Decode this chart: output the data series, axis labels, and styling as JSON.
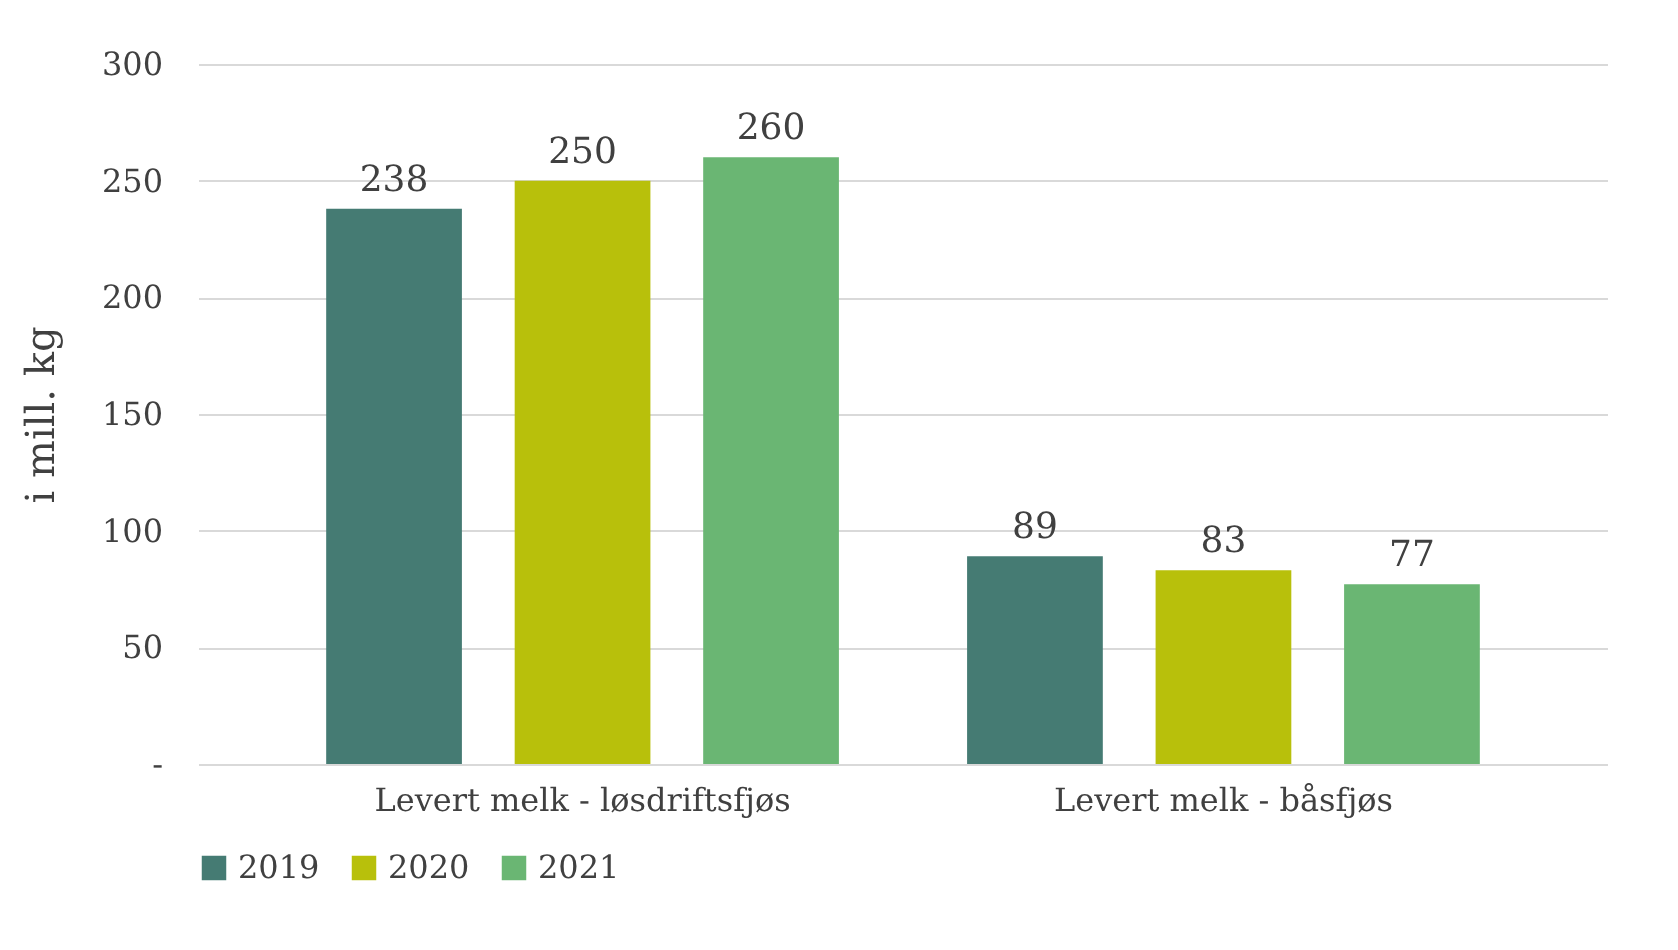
{
  "chart_data": {
    "type": "bar",
    "ylabel": "i mill. kg",
    "categories": [
      "Levert melk - løsdriftsfjøs",
      "Levert melk - båsfjøs"
    ],
    "series": [
      {
        "name": "2019",
        "color": "#457b73",
        "values": [
          238,
          89
        ]
      },
      {
        "name": "2020",
        "color": "#b8c00b",
        "values": [
          250,
          83
        ]
      },
      {
        "name": "2021",
        "color": "#6ab673",
        "values": [
          260,
          77
        ]
      }
    ],
    "ylim": [
      0,
      300
    ],
    "yticks": [
      {
        "value": 0,
        "label": "-"
      },
      50,
      100,
      150,
      200,
      250,
      300
    ],
    "grid": "y",
    "legend": "bottom",
    "data_labels": true
  }
}
